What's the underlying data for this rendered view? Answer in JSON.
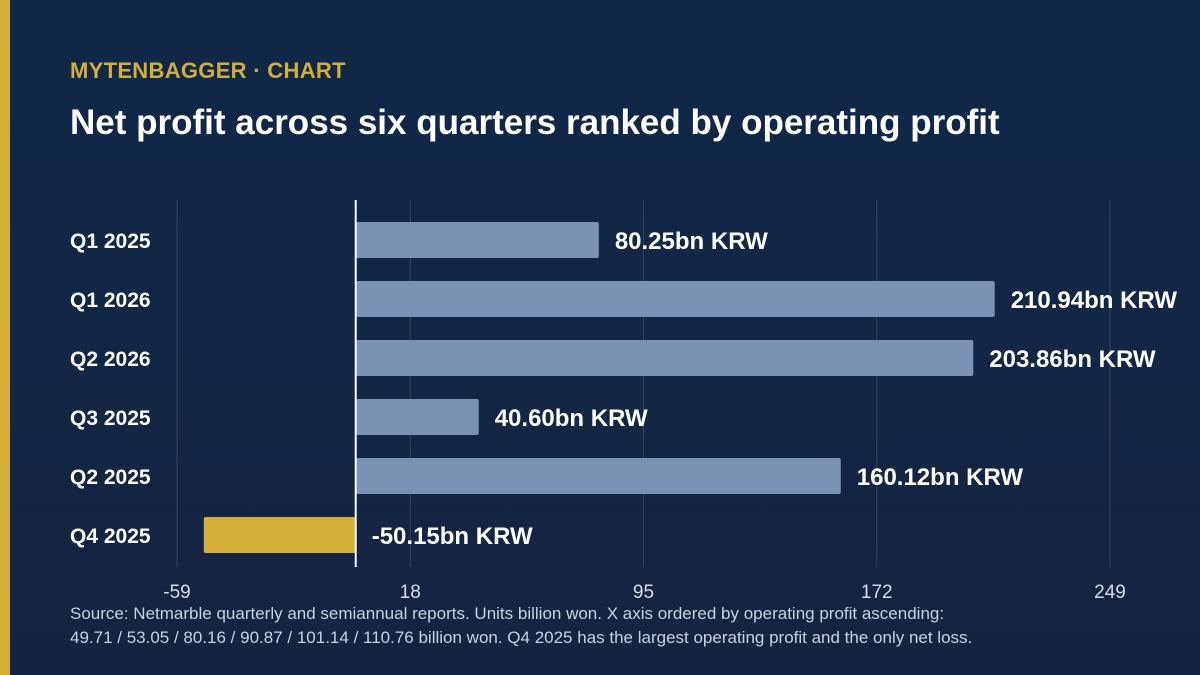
{
  "kicker": "MYTENBAGGER · CHART",
  "title": "Net profit across six quarters ranked by operating profit",
  "source_lines": [
    "Source: Netmarble quarterly and semiannual reports. Units billion won. X axis ordered by operating profit ascending:",
    "49.71 / 53.05 / 80.16 / 90.87 / 101.14 / 110.76 billion won. Q4 2025 has the largest operating profit and the only net loss."
  ],
  "colors": {
    "accent": "#d4af37",
    "bar": "#7a93b5",
    "negative_bar": "#d4af37",
    "background": "#132645"
  },
  "chart_data": {
    "type": "bar",
    "orientation": "horizontal",
    "categories": [
      "Q1 2025",
      "Q1 2026",
      "Q2 2026",
      "Q3 2025",
      "Q2 2025",
      "Q4 2025"
    ],
    "values": [
      80.25,
      210.94,
      203.86,
      40.6,
      160.12,
      -50.15
    ],
    "value_labels": [
      "80.25bn KRW",
      "210.94bn KRW",
      "203.86bn KRW",
      "40.60bn KRW",
      "160.12bn KRW",
      "-50.15bn KRW"
    ],
    "x_ticks": [
      -59,
      18,
      95,
      172,
      249
    ],
    "xlim": [
      -59,
      249
    ],
    "grid": true,
    "legend": "none"
  }
}
